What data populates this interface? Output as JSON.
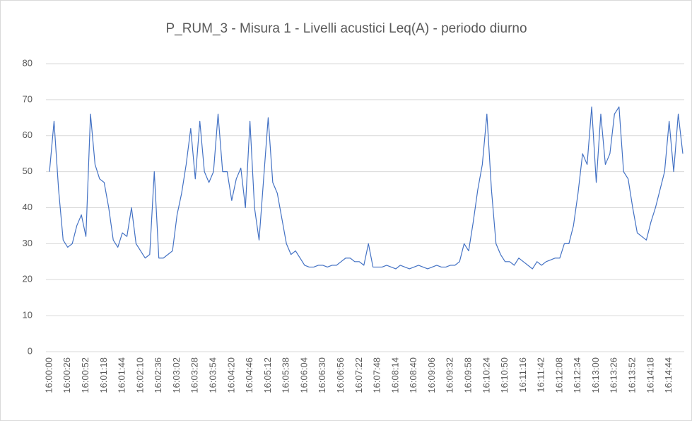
{
  "chart_data": {
    "type": "line",
    "title": "P_RUM_3 - Misura 1 - Livelli acustici Leq(A) - periodo diurno",
    "categories": [
      "16:00:00",
      null,
      null,
      null,
      "16:00:26",
      null,
      null,
      null,
      "16:00:52",
      null,
      null,
      null,
      "16:01:18",
      null,
      null,
      null,
      "16:01:44",
      null,
      null,
      null,
      "16:02:10",
      null,
      null,
      null,
      "16:02:36",
      null,
      null,
      null,
      "16:03:02",
      null,
      null,
      null,
      "16:03:28",
      null,
      null,
      null,
      "16:03:54",
      null,
      null,
      null,
      "16:04:20",
      null,
      null,
      null,
      "16:04:46",
      null,
      null,
      null,
      "16:05:12",
      null,
      null,
      null,
      "16:05:38",
      null,
      null,
      null,
      "16:06:04",
      null,
      null,
      null,
      "16:06:30",
      null,
      null,
      null,
      "16:06:56",
      null,
      null,
      null,
      "16:07:22",
      null,
      null,
      null,
      "16:07:48",
      null,
      null,
      null,
      "16:08:14",
      null,
      null,
      null,
      "16:08:40",
      null,
      null,
      null,
      "16:09:06",
      null,
      null,
      null,
      "16:09:32",
      null,
      null,
      null,
      "16:09:58",
      null,
      null,
      null,
      "16:10:24",
      null,
      null,
      null,
      "16:10:50",
      null,
      null,
      null,
      "16:11:16",
      null,
      null,
      null,
      "16:11:42",
      null,
      null,
      null,
      "16:12:08",
      null,
      null,
      null,
      "16:12:34",
      null,
      null,
      null,
      "16:13:00",
      null,
      null,
      null,
      "16:13:26",
      null,
      null,
      null,
      "16:13:52",
      null,
      null,
      null,
      "16:14:18",
      null,
      null,
      null,
      "16:14:44",
      null,
      null,
      null
    ],
    "values": [
      50,
      64,
      45,
      31,
      29,
      30,
      35,
      38,
      32,
      66,
      52,
      48,
      47,
      40,
      31,
      29,
      33,
      32,
      40,
      30,
      28,
      26,
      27,
      50,
      26,
      26,
      27,
      28,
      38,
      44,
      52,
      62,
      48,
      64,
      50,
      47,
      50,
      66,
      50,
      50,
      42,
      48,
      51,
      40,
      64,
      40,
      31,
      48,
      65,
      47,
      44,
      37,
      30,
      27,
      28,
      26,
      24,
      23.5,
      23.5,
      24,
      24,
      23.5,
      24,
      24,
      25,
      26,
      26,
      25,
      25,
      24,
      30,
      23.5,
      23.5,
      23.5,
      24,
      23.5,
      23,
      24,
      23.5,
      23,
      23.5,
      24,
      23.5,
      23,
      23.5,
      24,
      23.5,
      23.5,
      24,
      24,
      25,
      30,
      28,
      36,
      45,
      52,
      66,
      45,
      30,
      27,
      25,
      25,
      24,
      26,
      25,
      24,
      23,
      25,
      24,
      25,
      25.5,
      26,
      26,
      30,
      30,
      35,
      44,
      55,
      52,
      68,
      47,
      66,
      52,
      55,
      66,
      68,
      50,
      48,
      40,
      33,
      32,
      31,
      36,
      40,
      45,
      50,
      64,
      50,
      66,
      55
    ],
    "color": "#4472c4",
    "ylim": [
      0,
      80
    ],
    "yticks": [
      0,
      10,
      20,
      30,
      40,
      50,
      60,
      70,
      80
    ],
    "grid": true
  }
}
